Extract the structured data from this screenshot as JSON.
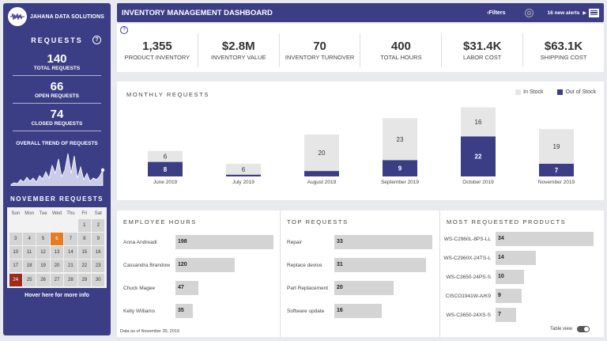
{
  "brand": {
    "name": "JAHANA DATA SOLUTIONS",
    "logo_icon": "waveform-icon"
  },
  "sidebar": {
    "section_title": "REQUESTS",
    "help_label": "?",
    "stats": [
      {
        "value": "140",
        "label": "TOTAL REQUESTS"
      },
      {
        "value": "66",
        "label": "OPEN REQUESTS"
      },
      {
        "value": "74",
        "label": "CLOSED REQUESTS"
      }
    ],
    "trend_title": "OVERALL TREND OF REQUESTS",
    "calendar_title": "NOVEMBER REQUESTS",
    "weekdays": [
      "Sun",
      "Mon",
      "Tue",
      "Wed",
      "Thu",
      "Fri",
      "Sat"
    ],
    "weeks": [
      [
        "",
        "",
        "",
        "",
        "",
        "1",
        "2"
      ],
      [
        "3",
        "4",
        "5",
        "6",
        "7",
        "8",
        "9"
      ],
      [
        "10",
        "11",
        "12",
        "13",
        "14",
        "15",
        "16"
      ],
      [
        "17",
        "18",
        "19",
        "20",
        "21",
        "22",
        "23"
      ],
      [
        "24",
        "25",
        "26",
        "27",
        "28",
        "29",
        "30"
      ]
    ],
    "today_day": "6",
    "selected_day": "24",
    "hover_text": "Hover here for more info"
  },
  "header": {
    "title": "INVENTORY MANAGEMENT DASHBOARD",
    "filters_label": "Filters",
    "alerts_label": "16 new alerts",
    "settings_icon": "gear-icon",
    "menu_icon": "hamburger-icon"
  },
  "kpis": {
    "help_label": "?",
    "items": [
      {
        "value": "1,355",
        "label": "PRODUCT INVENTORY"
      },
      {
        "value": "$2.8M",
        "label": "INVENTORY VALUE"
      },
      {
        "value": "70",
        "label": "INVENTORY TURNOVER"
      },
      {
        "value": "400",
        "label": "TOTAL HOURS"
      },
      {
        "value": "$31.4K",
        "label": "LABOR COST"
      },
      {
        "value": "$63.1K",
        "label": "SHIPPING COST"
      }
    ]
  },
  "colors": {
    "accent": "#3b3e85",
    "in_stock": "#e6e6e6",
    "out_of_stock": "#3b3e85",
    "today": "#e87c20",
    "selected": "#9c2d1d"
  },
  "chart_data": {
    "type": "bar",
    "stacked": true,
    "title": "MONTHLY REQUESTS",
    "legend_position": "top-right",
    "categories": [
      "June 2019",
      "July 2019",
      "August 2019",
      "September 2019",
      "October 2019",
      "November 2019"
    ],
    "series": [
      {
        "name": "Out of Stock",
        "values": [
          8,
          1,
          3,
          9,
          22,
          7
        ],
        "labels": [
          "8",
          "",
          "",
          "9",
          "22",
          "7"
        ]
      },
      {
        "name": "In Stock",
        "values": [
          6,
          6,
          20,
          23,
          16,
          19
        ],
        "labels": [
          "6",
          "6",
          "20",
          "23",
          "16",
          "19"
        ]
      }
    ]
  },
  "employee_hours": {
    "title": "EMPLOYEE HOURS",
    "items": [
      {
        "name": "Anna Andreadi",
        "value": 198
      },
      {
        "name": "Cassandra Brandow",
        "value": 120
      },
      {
        "name": "Chuck Magee",
        "value": 47
      },
      {
        "name": "Kelly Williams",
        "value": 35
      }
    ],
    "max": 198
  },
  "top_requests": {
    "title": "TOP REQUESTS",
    "items": [
      {
        "name": "Repair",
        "value": 33
      },
      {
        "name": "Replace device",
        "value": 31
      },
      {
        "name": "Part Replacement",
        "value": 20
      },
      {
        "name": "Software update",
        "value": 16
      }
    ],
    "max": 33
  },
  "products": {
    "title": "MOST REQUESTED PRODUCTS",
    "items": [
      {
        "name": "WS-C2960L-8PS-LL",
        "value": 34
      },
      {
        "name": "WS-C2960X-24TS-L",
        "value": 14
      },
      {
        "name": "WS-C3650-24PS-S",
        "value": 10
      },
      {
        "name": "CISCO1941W-A/K9",
        "value": 9
      },
      {
        "name": "WS-C3650-24XS-S",
        "value": 7
      }
    ],
    "max": 34
  },
  "footer": {
    "as_of": "Data as of November 30, 2019",
    "table_view_label": "Table view"
  }
}
